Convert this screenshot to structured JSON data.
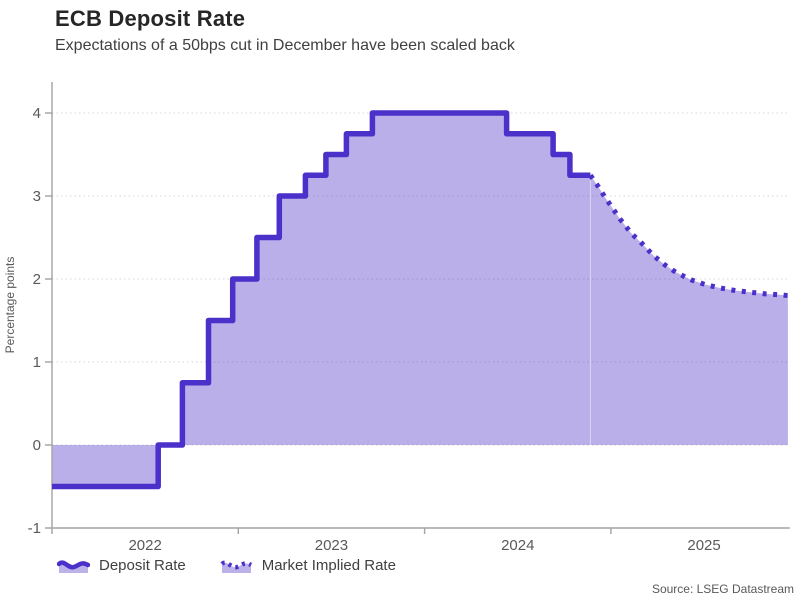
{
  "header": {
    "title": "ECB Deposit Rate",
    "subtitle": "Expectations of a 50bps cut in December have been scaled back"
  },
  "legend": {
    "items": [
      {
        "label": "Deposit Rate",
        "style": "solid"
      },
      {
        "label": "Market Implied Rate",
        "style": "dotted"
      }
    ]
  },
  "footer": {
    "source": "Source: LSEG Datastream"
  },
  "chart_data": {
    "type": "area",
    "title": "ECB Deposit Rate",
    "subtitle": "Expectations of a 50bps cut in December have been scaled back",
    "ylabel": "Percentage points",
    "xlabel": "",
    "ylim": [
      -1,
      4
    ],
    "yticks": [
      -1,
      0,
      1,
      2,
      3,
      4
    ],
    "xlim": [
      2022.0,
      2025.96
    ],
    "xticks_years": [
      2022,
      2023,
      2024,
      2025
    ],
    "xtick_labels": [
      "2022",
      "2023",
      "2024",
      "2025"
    ],
    "grid": "horizontal-dotted",
    "legend_position": "bottom-left",
    "baseline": 0,
    "series": [
      {
        "name": "Deposit Rate",
        "style": "solid-step",
        "points": [
          [
            2022.0,
            -0.5
          ],
          [
            2022.57,
            0.0
          ],
          [
            2022.7,
            0.75
          ],
          [
            2022.84,
            1.5
          ],
          [
            2022.97,
            2.0
          ],
          [
            2023.1,
            2.5
          ],
          [
            2023.22,
            3.0
          ],
          [
            2023.36,
            3.25
          ],
          [
            2023.47,
            3.5
          ],
          [
            2023.58,
            3.75
          ],
          [
            2023.72,
            4.0
          ],
          [
            2024.44,
            3.75
          ],
          [
            2024.69,
            3.5
          ],
          [
            2024.78,
            3.25
          ],
          [
            2024.89,
            3.25
          ]
        ]
      },
      {
        "name": "Market Implied Rate",
        "style": "dotted-line",
        "points": [
          [
            2024.89,
            3.25
          ],
          [
            2024.93,
            3.12
          ],
          [
            2024.97,
            2.98
          ],
          [
            2025.05,
            2.72
          ],
          [
            2025.11,
            2.55
          ],
          [
            2025.17,
            2.42
          ],
          [
            2025.23,
            2.28
          ],
          [
            2025.29,
            2.17
          ],
          [
            2025.35,
            2.08
          ],
          [
            2025.43,
            1.99
          ],
          [
            2025.51,
            1.93
          ],
          [
            2025.59,
            1.89
          ],
          [
            2025.67,
            1.86
          ],
          [
            2025.75,
            1.84
          ],
          [
            2025.83,
            1.82
          ],
          [
            2025.91,
            1.81
          ],
          [
            2025.95,
            1.8
          ]
        ]
      }
    ],
    "colors": {
      "line": "#4B30C9",
      "fill": "rgba(77,46,200,0.38)",
      "legend_fill": "#bdb1e9",
      "grid": "#d4d4d4",
      "axis": "#a3a3a3",
      "tick_label": "#595959"
    }
  }
}
